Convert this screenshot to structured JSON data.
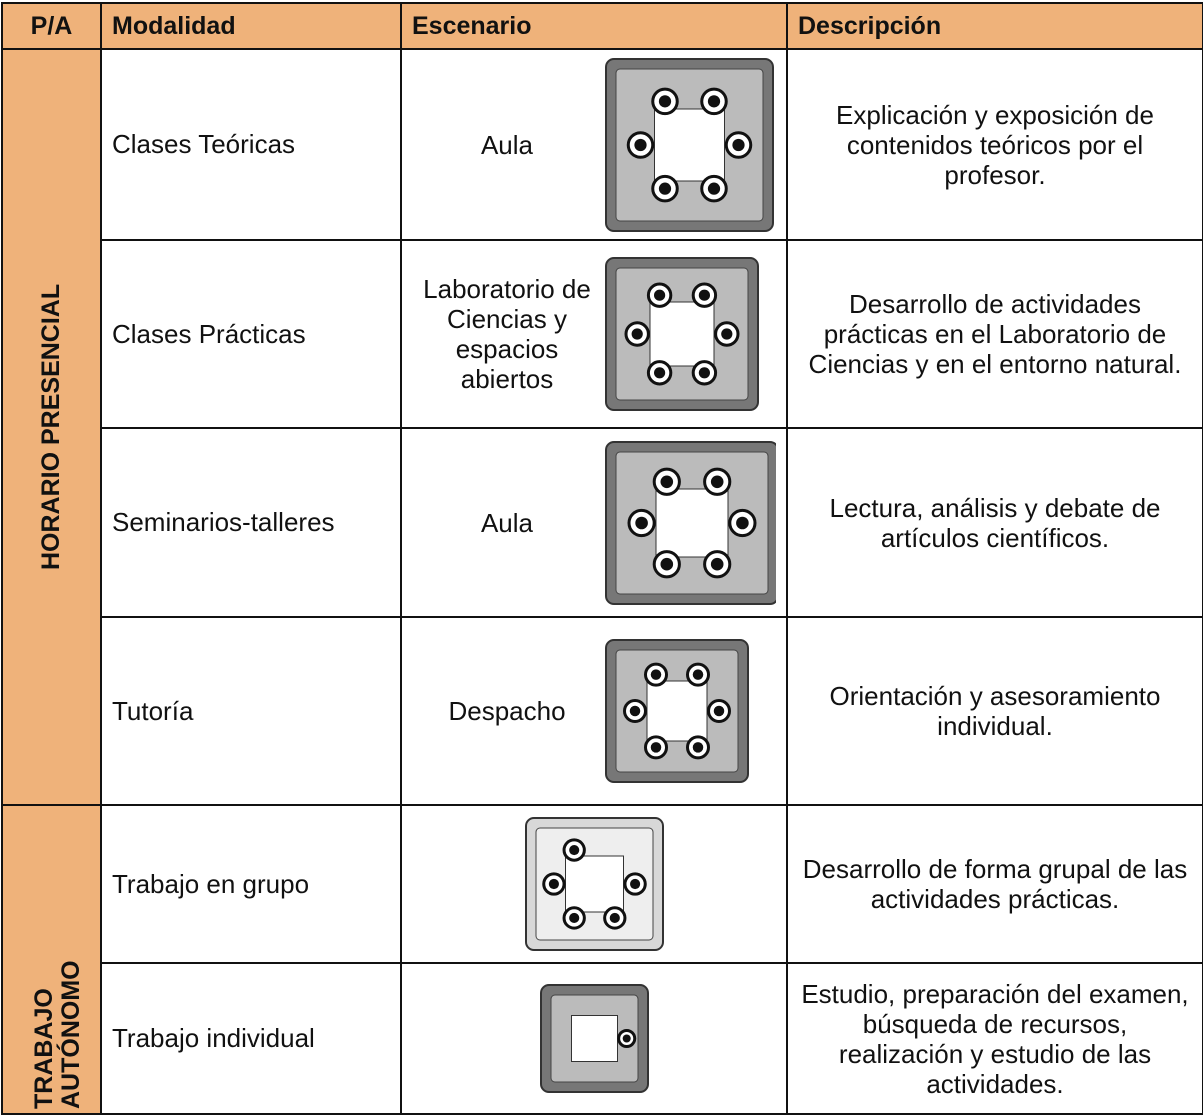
{
  "header": [
    "P/A",
    "Modalidad",
    "Escenario",
    "Descripción"
  ],
  "groups": [
    {
      "label": "HORARIO PRESENCIAL",
      "rows": [
        {
          "modalidad": "Clases Teóricas",
          "escenario": "Aula",
          "descripcion": "Explicación y exposición de contenidos teóricos por el profesor."
        },
        {
          "modalidad": "Clases Prácticas",
          "escenario": "Laboratorio de Ciencias y espacios abiertos",
          "descripcion": "Desarrollo de actividades prácticas en el Laboratorio de Ciencias y en el entorno natural."
        },
        {
          "modalidad": "Seminarios-talleres",
          "escenario": "Aula",
          "descripcion": "Lectura, análisis y debate de artículos científicos."
        },
        {
          "modalidad": "Tutoría",
          "escenario": "Despacho",
          "descripcion": "Orientación y asesoramiento individual."
        }
      ]
    },
    {
      "label": "TRABAJO AUTÓNOMO",
      "rows": [
        {
          "modalidad": "Trabajo en grupo",
          "escenario": "",
          "descripcion": "Desarrollo de forma grupal de las actividades prácticas."
        },
        {
          "modalidad": "Trabajo individual",
          "escenario": "",
          "descripcion": "Estudio, preparación del examen, búsqueda de recursos, realización y estudio de las actividades."
        }
      ]
    }
  ]
}
